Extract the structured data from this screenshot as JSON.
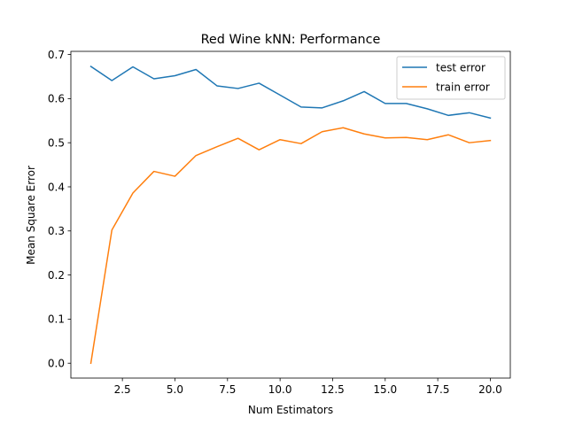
{
  "chart_data": {
    "type": "line",
    "title": "Red Wine kNN: Performance",
    "xlabel": "Num Estimators",
    "ylabel": "Mean Square Error",
    "xlim": [
      0.05,
      20.95
    ],
    "ylim": [
      -0.0337,
      0.7072
    ],
    "xticks": [
      2.5,
      5.0,
      7.5,
      10.0,
      12.5,
      15.0,
      17.5,
      20.0
    ],
    "xtick_labels": [
      "2.5",
      "5.0",
      "7.5",
      "10.0",
      "12.5",
      "15.0",
      "17.5",
      "20.0"
    ],
    "yticks": [
      0.0,
      0.1,
      0.2,
      0.3,
      0.4,
      0.5,
      0.6,
      0.7
    ],
    "ytick_labels": [
      "0.0",
      "0.1",
      "0.2",
      "0.3",
      "0.4",
      "0.5",
      "0.6",
      "0.7"
    ],
    "grid": false,
    "legend_position": "top-right",
    "x": [
      1,
      2,
      3,
      4,
      5,
      6,
      7,
      8,
      9,
      10,
      11,
      12,
      13,
      14,
      15,
      16,
      17,
      18,
      19,
      20
    ],
    "series": [
      {
        "name": "test error",
        "color": "#1f77b4",
        "values": [
          0.673,
          0.641,
          0.672,
          0.645,
          0.652,
          0.666,
          0.629,
          0.623,
          0.635,
          0.608,
          0.581,
          0.579,
          0.595,
          0.616,
          0.589,
          0.589,
          0.577,
          0.562,
          0.568,
          0.556
        ]
      },
      {
        "name": "train error",
        "color": "#ff7f0e",
        "values": [
          0.0,
          0.302,
          0.386,
          0.435,
          0.424,
          0.471,
          0.491,
          0.51,
          0.484,
          0.507,
          0.498,
          0.525,
          0.534,
          0.52,
          0.511,
          0.512,
          0.507,
          0.518,
          0.5,
          0.505
        ]
      }
    ]
  }
}
